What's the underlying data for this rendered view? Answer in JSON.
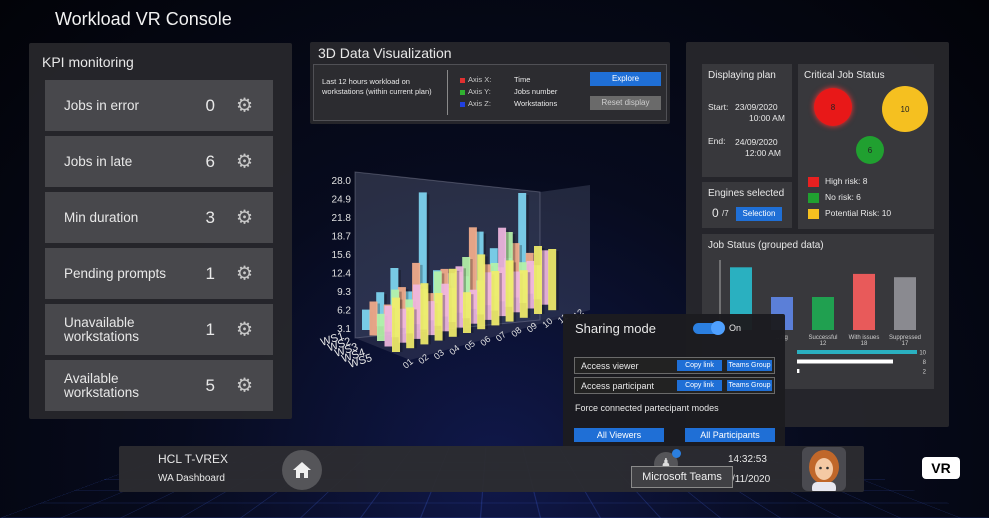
{
  "app_title": "Workload VR Console",
  "kpi": {
    "title": "KPI monitoring",
    "items": [
      {
        "label": "Jobs in error",
        "value": "0"
      },
      {
        "label": "Jobs in late",
        "value": "6"
      },
      {
        "label": "Min duration",
        "value": "3"
      },
      {
        "label": "Pending prompts",
        "value": "1"
      },
      {
        "label": "Unavailable workstations",
        "value": "1"
      },
      {
        "label": "Available workstations",
        "value": "5"
      }
    ]
  },
  "viz": {
    "title": "3D Data Visualization",
    "description": "Last 12 hours workload on workstations (within current plan)",
    "axes": [
      {
        "name": "Axis X:",
        "value": "Time",
        "color": "#e03030"
      },
      {
        "name": "Axis Y:",
        "value": "Jobs number",
        "color": "#30b030"
      },
      {
        "name": "Axis Z:",
        "value": "Workstations",
        "color": "#2040e0"
      }
    ],
    "explore_label": "Explore",
    "reset_label": "Reset display",
    "chart3d": {
      "y_ticks": [
        "28.0",
        "24.9",
        "21.8",
        "18.7",
        "15.6",
        "12.4",
        "9.3",
        "6.2",
        "3.1"
      ],
      "z_labels": [
        "WS1",
        "WS2",
        "WS3",
        "WS4",
        "WS5"
      ],
      "x_labels": [
        "01",
        "02",
        "03",
        "04",
        "05",
        "06",
        "07",
        "08",
        "09",
        "10",
        "11",
        "12"
      ]
    }
  },
  "plan": {
    "title": "Displaying plan",
    "start_label": "Start:",
    "start_date": "23/09/2020",
    "start_time": "10:00 AM",
    "end_label": "End:",
    "end_date": "24/09/2020",
    "end_time": "12:00 AM"
  },
  "critical": {
    "title": "Critical Job Status",
    "bubbles": [
      {
        "value": "8",
        "color": "#e81818"
      },
      {
        "value": "10",
        "color": "#f5c020"
      },
      {
        "value": "6",
        "color": "#20a030"
      }
    ],
    "legend": [
      {
        "label": "High risk: 8",
        "color": "#e82020"
      },
      {
        "label": "No risk: 6",
        "color": "#20a030"
      },
      {
        "label": "Potential Risk: 10",
        "color": "#f5c020"
      }
    ]
  },
  "engines": {
    "title": "Engines selected",
    "count": "0",
    "total": "/7",
    "button": "Selection"
  },
  "job_status": {
    "title": "Job Status (grouped data)",
    "bars": [
      {
        "label": "",
        "value": "",
        "color": "#2ab0c0",
        "level": 0.95
      },
      {
        "label": "...ng",
        "value": "",
        "color": "#5b7fd8",
        "level": 0.5
      },
      {
        "label": "Successful",
        "value": "12",
        "color": "#20a050",
        "level": 0.5
      },
      {
        "label": "With issues",
        "value": "18",
        "color": "#e85a5a",
        "level": 0.85
      },
      {
        "label": "Suppressed",
        "value": "17",
        "color": "#8a8a90",
        "level": 0.8
      }
    ],
    "progress": [
      {
        "value": "10",
        "color": "#2ab0c0",
        "level": 1.0
      },
      {
        "value": "8",
        "color": "#ffffff",
        "level": 0.8
      },
      {
        "value": "2",
        "color": "#ffffff",
        "level": 0.02
      }
    ]
  },
  "sharing": {
    "title": "Sharing mode",
    "state": "On",
    "rows": [
      {
        "label": "Access viewer",
        "copy": "Copy link",
        "teams": "Teams Group"
      },
      {
        "label": "Access participant",
        "copy": "Copy link",
        "teams": "Teams Group"
      }
    ],
    "force_label": "Force connected partecipant modes",
    "all_viewers": "All Viewers",
    "all_participants": "All Participants"
  },
  "bottom": {
    "brand": "HCL T-VREX",
    "subtitle": "WA Dashboard",
    "time": "14:32:53",
    "date_partial": "/11/2020",
    "tooltip": "Microsoft Teams",
    "vr_badge": "VR"
  }
}
